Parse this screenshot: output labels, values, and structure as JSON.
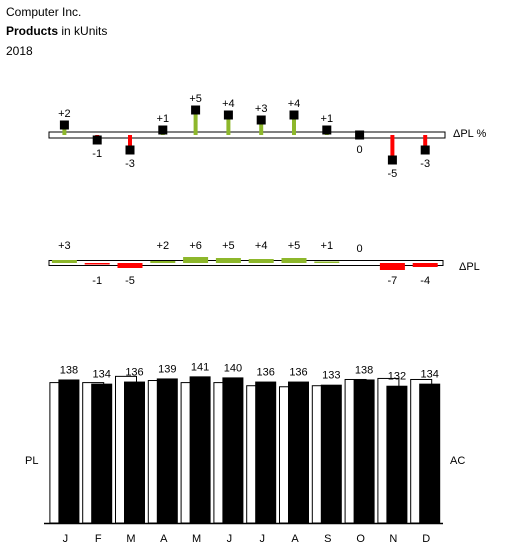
{
  "header": {
    "company": "Computer Inc.",
    "measure_bold": "Products",
    "measure_unit": " in kUnits",
    "year": "2018"
  },
  "colors": {
    "positive": "#8db72b",
    "negative": "#ff0000",
    "ac_bar": "#000000",
    "pl_bar": "#ffffff",
    "marker": "#000000"
  },
  "chart_data": [
    {
      "type": "pin",
      "label": "ΔPL %",
      "categories": [
        "J",
        "F",
        "M",
        "A",
        "M",
        "J",
        "J",
        "A",
        "S",
        "O",
        "N",
        "D"
      ],
      "values": [
        2,
        -1,
        -3,
        1,
        5,
        4,
        3,
        4,
        1,
        0,
        -5,
        -3
      ],
      "value_labels": [
        "+2",
        "-1",
        "-3",
        "+1",
        "+5",
        "+4",
        "+3",
        "+4",
        "+1",
        "0",
        "-5",
        "-3"
      ]
    },
    {
      "type": "bar",
      "label": "ΔPL",
      "categories": [
        "J",
        "F",
        "M",
        "A",
        "M",
        "J",
        "J",
        "A",
        "S",
        "O",
        "N",
        "D"
      ],
      "values": [
        3,
        -1,
        -5,
        2,
        6,
        5,
        4,
        5,
        1,
        0,
        -7,
        -4
      ],
      "value_labels": [
        "+3",
        "-1",
        "-5",
        "+2",
        "+6",
        "+5",
        "+4",
        "+5",
        "+1",
        "0",
        "-7",
        "-4"
      ]
    },
    {
      "type": "bar",
      "categories": [
        "J",
        "F",
        "M",
        "A",
        "M",
        "J",
        "J",
        "A",
        "S",
        "O",
        "N",
        "D"
      ],
      "series": [
        {
          "name": "PL",
          "values": [
            135,
            135,
            141,
            137,
            135,
            135,
            132,
            131,
            132,
            138,
            139,
            138
          ]
        },
        {
          "name": "AC",
          "values": [
            138,
            134,
            136,
            139,
            141,
            140,
            136,
            136,
            133,
            138,
            132,
            134
          ]
        }
      ],
      "value_labels": [
        "138",
        "134",
        "136",
        "139",
        "141",
        "140",
        "136",
        "136",
        "133",
        "138",
        "132",
        "134"
      ],
      "ylim": [
        0,
        141
      ]
    }
  ]
}
